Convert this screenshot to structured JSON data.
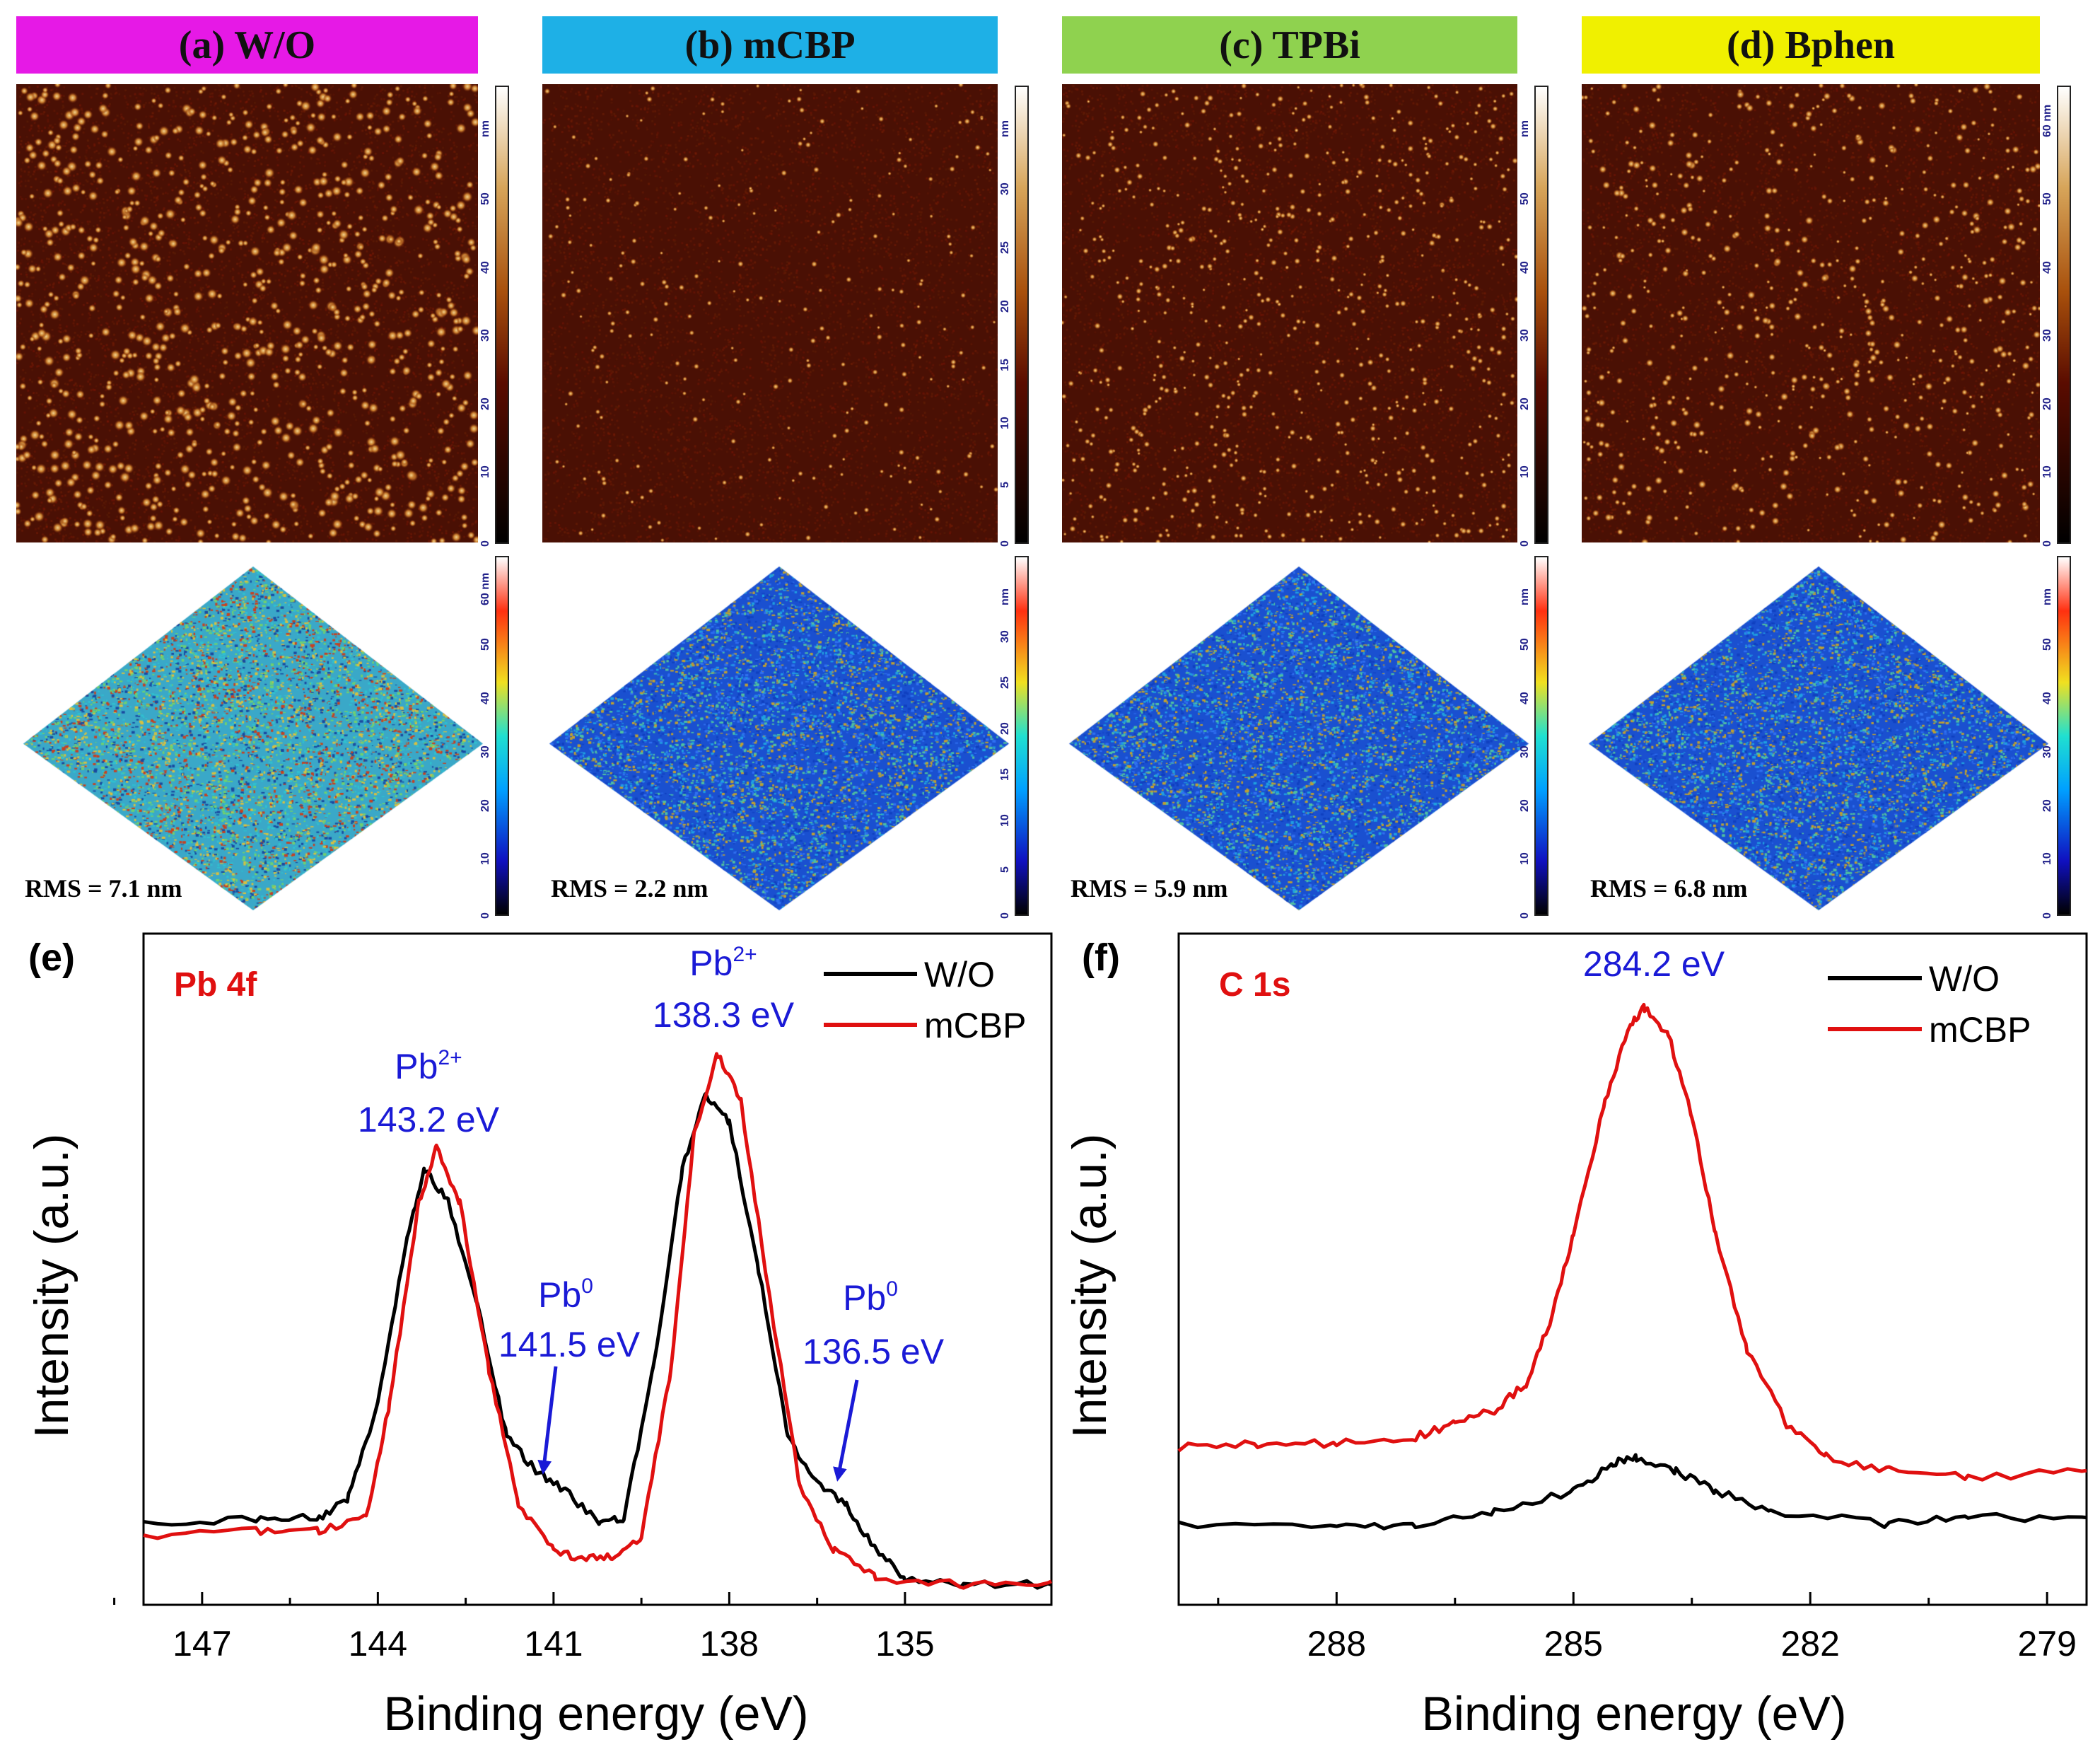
{
  "panels": [
    {
      "title": "(a) W/O",
      "color": "#e619e6",
      "rms": "RMS = 7.1 nm",
      "cbar2d": [
        "0",
        "10",
        "20",
        "30",
        "40",
        "50",
        "nm"
      ],
      "cbar3d": [
        "0",
        "10",
        "20",
        "30",
        "40",
        "50",
        "60 nm"
      ]
    },
    {
      "title": "(b) mCBP",
      "color": "#1eb0e6",
      "rms": "RMS = 2.2 nm",
      "cbar2d": [
        "0",
        "5",
        "10",
        "15",
        "20",
        "25",
        "30",
        "nm"
      ],
      "cbar3d": [
        "0",
        "5",
        "10",
        "15",
        "20",
        "25",
        "30",
        "nm"
      ]
    },
    {
      "title": "(c) TPBi",
      "color": "#8fd24f",
      "rms": "RMS = 5.9 nm",
      "cbar2d": [
        "0",
        "10",
        "20",
        "30",
        "40",
        "50",
        "nm"
      ],
      "cbar3d": [
        "0",
        "10",
        "20",
        "30",
        "40",
        "50",
        "nm"
      ]
    },
    {
      "title": "(d) Bphen",
      "color": "#f0f000",
      "rms": "RMS = 6.8 nm",
      "cbar2d": [
        "0",
        "10",
        "20",
        "30",
        "40",
        "50",
        "60 nm"
      ],
      "cbar3d": [
        "0",
        "10",
        "20",
        "30",
        "40",
        "50",
        "nm"
      ]
    }
  ],
  "chart_data": [
    {
      "type": "line",
      "panel_label": "(e)",
      "title": "Pb 4f",
      "xlabel": "Binding energy (eV)",
      "ylabel": "Intensity (a.u.)",
      "xlim": [
        148,
        132.5
      ],
      "ylim": [
        0,
        1
      ],
      "xticks": [
        147,
        144,
        141,
        138,
        135
      ],
      "legend": "top-right",
      "series": [
        {
          "name": "W/O",
          "color": "#000000",
          "points": [
            [
              148,
              0.12
            ],
            [
              146,
              0.13
            ],
            [
              145,
              0.13
            ],
            [
              144.5,
              0.16
            ],
            [
              144,
              0.3
            ],
            [
              143.5,
              0.55
            ],
            [
              143.2,
              0.65
            ],
            [
              142.8,
              0.6
            ],
            [
              142.3,
              0.45
            ],
            [
              141.8,
              0.25
            ],
            [
              141.3,
              0.2
            ],
            [
              140.8,
              0.17
            ],
            [
              140.2,
              0.12
            ],
            [
              139.8,
              0.13
            ],
            [
              139.3,
              0.35
            ],
            [
              138.8,
              0.65
            ],
            [
              138.4,
              0.76
            ],
            [
              138.0,
              0.72
            ],
            [
              137.5,
              0.5
            ],
            [
              137,
              0.25
            ],
            [
              136.5,
              0.18
            ],
            [
              136.0,
              0.15
            ],
            [
              135.5,
              0.08
            ],
            [
              135,
              0.04
            ],
            [
              134,
              0.03
            ],
            [
              132.5,
              0.03
            ]
          ]
        },
        {
          "name": "mCBP",
          "color": "#e01010",
          "points": [
            [
              148,
              0.1
            ],
            [
              146,
              0.11
            ],
            [
              145,
              0.11
            ],
            [
              144.2,
              0.13
            ],
            [
              143.8,
              0.3
            ],
            [
              143.3,
              0.6
            ],
            [
              143.0,
              0.68
            ],
            [
              142.6,
              0.6
            ],
            [
              142.1,
              0.35
            ],
            [
              141.6,
              0.15
            ],
            [
              141,
              0.08
            ],
            [
              140.5,
              0.07
            ],
            [
              140,
              0.07
            ],
            [
              139.5,
              0.1
            ],
            [
              139,
              0.35
            ],
            [
              138.6,
              0.7
            ],
            [
              138.2,
              0.82
            ],
            [
              137.8,
              0.75
            ],
            [
              137.3,
              0.45
            ],
            [
              136.8,
              0.18
            ],
            [
              136.2,
              0.08
            ],
            [
              135.5,
              0.04
            ],
            [
              134,
              0.03
            ],
            [
              132.5,
              0.035
            ]
          ]
        }
      ],
      "annotations": [
        {
          "species": "Pb",
          "sup": "2+",
          "energy": "143.2 eV"
        },
        {
          "species": "Pb",
          "sup": "2+",
          "energy": "138.3 eV"
        },
        {
          "species": "Pb",
          "sup": "0",
          "energy": "141.5 eV"
        },
        {
          "species": "Pb",
          "sup": "0",
          "energy": "136.5 eV"
        }
      ]
    },
    {
      "type": "line",
      "panel_label": "(f)",
      "title": "C 1s",
      "xlabel": "Binding energy (eV)",
      "ylabel": "Intensity (a.u.)",
      "xlim": [
        290,
        278.5
      ],
      "ylim": [
        0,
        1
      ],
      "xticks": [
        288,
        285,
        282,
        279
      ],
      "legend": "top-right",
      "series": [
        {
          "name": "W/O",
          "color": "#000000",
          "points": [
            [
              290,
              0.12
            ],
            [
              288,
              0.115
            ],
            [
              287,
              0.12
            ],
            [
              286,
              0.14
            ],
            [
              285,
              0.17
            ],
            [
              284.5,
              0.21
            ],
            [
              284.2,
              0.22
            ],
            [
              283.7,
              0.2
            ],
            [
              283.2,
              0.17
            ],
            [
              282.5,
              0.14
            ],
            [
              281,
              0.12
            ],
            [
              280,
              0.13
            ],
            [
              278.5,
              0.13
            ]
          ]
        },
        {
          "name": "mCBP",
          "color": "#e01010",
          "points": [
            [
              290,
              0.235
            ],
            [
              289,
              0.24
            ],
            [
              288,
              0.24
            ],
            [
              287,
              0.25
            ],
            [
              286.5,
              0.27
            ],
            [
              286,
              0.29
            ],
            [
              285.6,
              0.33
            ],
            [
              285.3,
              0.42
            ],
            [
              285,
              0.55
            ],
            [
              284.6,
              0.75
            ],
            [
              284.3,
              0.86
            ],
            [
              284.1,
              0.89
            ],
            [
              283.8,
              0.85
            ],
            [
              283.5,
              0.73
            ],
            [
              283.2,
              0.55
            ],
            [
              282.8,
              0.38
            ],
            [
              282.3,
              0.27
            ],
            [
              281.8,
              0.22
            ],
            [
              281,
              0.2
            ],
            [
              280,
              0.19
            ],
            [
              278.5,
              0.2
            ]
          ]
        }
      ],
      "annotations": [
        {
          "energy": "284.2 eV"
        }
      ]
    }
  ]
}
